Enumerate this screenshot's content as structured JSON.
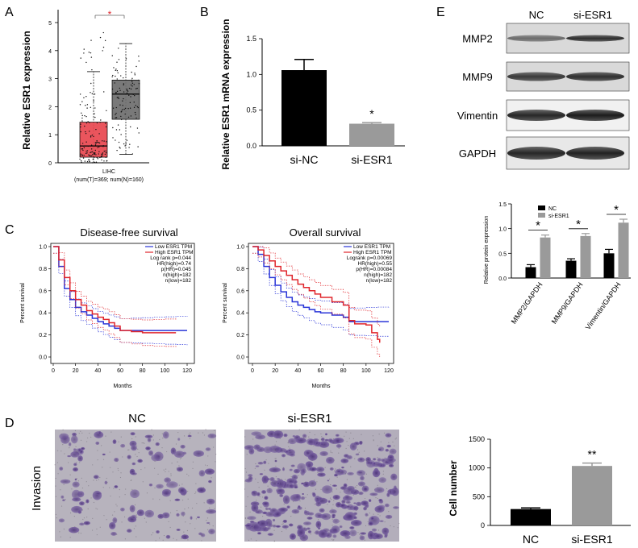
{
  "panels": {
    "a": "A",
    "b": "B",
    "c": "C",
    "d": "D",
    "e": "E"
  },
  "colors": {
    "tumor_box": "#e8474f",
    "normal_box": "#6e6e6e",
    "black_bar": "#000000",
    "grey_bar": "#9a9a9a",
    "low_line": "#2a35d8",
    "high_line": "#e0262c"
  },
  "chart_data": [
    {
      "id": "A",
      "type": "box",
      "ylabel": "Relative ESR1 expression",
      "ylim": [
        0,
        5
      ],
      "yticks": [
        "0",
        "1",
        "2",
        "3",
        "4",
        "5"
      ],
      "xlabel_line1": "LIHC",
      "xlabel_line2": "(num(T)=369; num(N)=160)",
      "significance": "*",
      "boxes": [
        {
          "group": "T",
          "q1": 0.2,
          "median": 0.6,
          "q3": 1.45,
          "whisker_low": 0.0,
          "whisker_high": 3.25,
          "color": "#e8474f"
        },
        {
          "group": "N",
          "q1": 1.55,
          "median": 2.45,
          "q3": 2.95,
          "whisker_low": 0.3,
          "whisker_high": 4.25,
          "color": "#6e6e6e"
        }
      ]
    },
    {
      "id": "B",
      "type": "bar",
      "ylabel": "Relative ESR1 mRNA expression",
      "ylim": [
        0,
        1.5
      ],
      "yticks": [
        "0.0",
        "0.5",
        "1.0",
        "1.5"
      ],
      "categories": [
        "si-NC",
        "si-ESR1"
      ],
      "values": [
        1.06,
        0.31
      ],
      "errors": [
        0.15,
        0.015
      ],
      "significance": [
        "",
        "*"
      ]
    },
    {
      "id": "C1",
      "type": "line",
      "title": "Disease-free survival",
      "xlabel": "Months",
      "ylabel": "Percent survival",
      "xlim": [
        0,
        120
      ],
      "xticks": [
        "0",
        "20",
        "40",
        "60",
        "80",
        "100",
        "120"
      ],
      "ylim": [
        0,
        1
      ],
      "yticks": [
        "0.0",
        "0.2",
        "0.4",
        "0.6",
        "0.8",
        "1.0"
      ],
      "legend": [
        "Low ESR1 TPM",
        "High ESR1 TPM"
      ],
      "stats": [
        "Log rank p=0.044",
        "HR(high)=0.74",
        "p(HR)=0.045",
        "n(high)=182",
        "n(low)=182"
      ],
      "series": [
        {
          "name": "Low ESR1 TPM",
          "x": [
            0,
            5,
            10,
            15,
            20,
            25,
            30,
            35,
            40,
            45,
            50,
            55,
            60,
            70,
            80,
            90,
            100,
            110,
            120
          ],
          "y": [
            1.0,
            0.82,
            0.62,
            0.52,
            0.45,
            0.41,
            0.38,
            0.35,
            0.32,
            0.3,
            0.28,
            0.26,
            0.24,
            0.24,
            0.24,
            0.24,
            0.24,
            0.24,
            0.24
          ]
        },
        {
          "name": "High ESR1 TPM",
          "x": [
            0,
            5,
            10,
            15,
            20,
            25,
            30,
            35,
            40,
            45,
            50,
            55,
            60,
            70,
            80,
            90,
            100,
            110
          ],
          "y": [
            1.0,
            0.88,
            0.72,
            0.6,
            0.52,
            0.47,
            0.42,
            0.39,
            0.36,
            0.34,
            0.31,
            0.28,
            0.24,
            0.23,
            0.22,
            0.22,
            0.22,
            0.22
          ]
        }
      ]
    },
    {
      "id": "C2",
      "type": "line",
      "title": "Overall survival",
      "xlabel": "Months",
      "ylabel": "Percent survival",
      "xlim": [
        0,
        120
      ],
      "xticks": [
        "0",
        "20",
        "40",
        "60",
        "80",
        "100",
        "120"
      ],
      "ylim": [
        0,
        1
      ],
      "yticks": [
        "0.0",
        "0.2",
        "0.4",
        "0.6",
        "0.8",
        "1.0"
      ],
      "legend": [
        "Low ESR1 TPM",
        "High ESR1 TPM"
      ],
      "stats": [
        "Logrank p=0.00069",
        "HR(high)=0.55",
        "p(HR)=0.00084",
        "n(high)=182",
        "n(low)=182"
      ],
      "series": [
        {
          "name": "Low ESR1 TPM",
          "x": [
            0,
            5,
            10,
            15,
            20,
            25,
            30,
            35,
            40,
            45,
            50,
            55,
            60,
            70,
            80,
            85,
            90,
            100,
            110,
            120
          ],
          "y": [
            1.0,
            0.93,
            0.82,
            0.72,
            0.65,
            0.59,
            0.54,
            0.5,
            0.47,
            0.45,
            0.43,
            0.41,
            0.4,
            0.38,
            0.36,
            0.32,
            0.32,
            0.32,
            0.32,
            0.32
          ]
        },
        {
          "name": "High ESR1 TPM",
          "x": [
            0,
            5,
            10,
            15,
            20,
            25,
            30,
            35,
            40,
            45,
            50,
            55,
            60,
            70,
            80,
            85,
            90,
            100,
            105,
            110,
            112
          ],
          "y": [
            1.0,
            0.97,
            0.92,
            0.87,
            0.82,
            0.78,
            0.74,
            0.7,
            0.66,
            0.63,
            0.6,
            0.57,
            0.54,
            0.5,
            0.47,
            0.33,
            0.3,
            0.29,
            0.22,
            0.16,
            0.13
          ]
        }
      ]
    },
    {
      "id": "D",
      "type": "bar",
      "ylabel": "Cell number",
      "ylim": [
        0,
        1500
      ],
      "yticks": [
        "0",
        "500",
        "1000",
        "1500"
      ],
      "categories": [
        "NC",
        "si-ESR1"
      ],
      "values": [
        285,
        1035
      ],
      "errors": [
        20,
        50
      ],
      "significance": [
        "",
        "**"
      ]
    },
    {
      "id": "E2",
      "type": "bar",
      "ylabel": "Relative protein expression",
      "ylim": [
        0,
        1.5
      ],
      "yticks": [
        "0.0",
        "0.5",
        "1.0",
        "1.5"
      ],
      "categories": [
        "MMP2/GAPDH",
        "MMP9/GAPDH",
        "Vimentin/GAPDH"
      ],
      "series": [
        {
          "name": "NC",
          "values": [
            0.22,
            0.35,
            0.5
          ],
          "errors": [
            0.05,
            0.04,
            0.08
          ]
        },
        {
          "name": "si-ESR1",
          "values": [
            0.82,
            0.85,
            1.12
          ],
          "errors": [
            0.05,
            0.05,
            0.07
          ]
        }
      ],
      "significance": [
        "*",
        "*",
        "*"
      ]
    }
  ],
  "western": {
    "conditions": [
      "NC",
      "si-ESR1"
    ],
    "rows": [
      "MMP2",
      "MMP9",
      "Vimentin",
      "GAPDH"
    ]
  },
  "invasion": {
    "row_label": "Invasion",
    "conditions": [
      "NC",
      "si-ESR1"
    ]
  }
}
